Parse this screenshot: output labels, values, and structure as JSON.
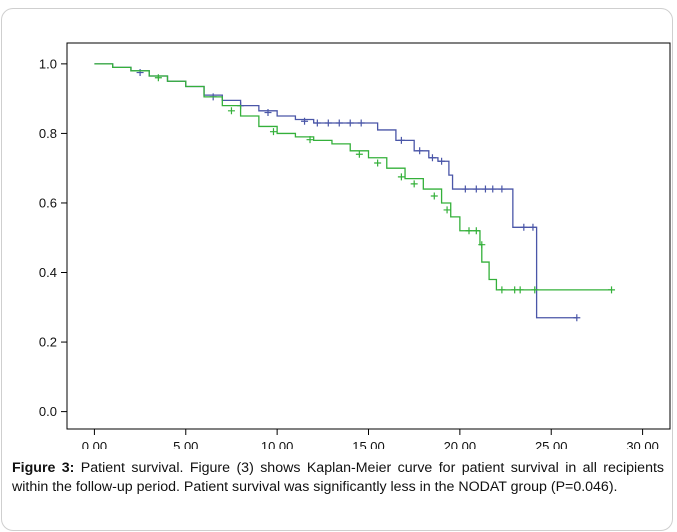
{
  "caption": {
    "label": "Figure 3:",
    "text": " Patient survival. Figure (3) shows Kaplan-Meier curve for patient survival in all recipients within the follow-up period. Patient survival was significantly less in the NODAT group (P=0.046)."
  },
  "chart_data": {
    "type": "line",
    "title": "",
    "xlabel": "",
    "ylabel": "",
    "xlim": [
      -1.5,
      31.5
    ],
    "ylim": [
      -0.05,
      1.06
    ],
    "x_ticks": [
      "0.00",
      "5.00",
      "10.00",
      "15.00",
      "20.00",
      "25.00",
      "30.00"
    ],
    "y_ticks": [
      "0.0",
      "0.2",
      "0.4",
      "0.6",
      "0.8",
      "1.0"
    ],
    "grid": false,
    "legend": "none",
    "series": [
      {
        "color": "#4a56a8",
        "step": [
          [
            0,
            1.0
          ],
          [
            1,
            0.99
          ],
          [
            2,
            0.98
          ],
          [
            3,
            0.965
          ],
          [
            4,
            0.95
          ],
          [
            5,
            0.935
          ],
          [
            6,
            0.91
          ],
          [
            7,
            0.895
          ],
          [
            8,
            0.88
          ],
          [
            9,
            0.865
          ],
          [
            10,
            0.85
          ],
          [
            11,
            0.84
          ],
          [
            12,
            0.83
          ],
          [
            15.5,
            0.81
          ],
          [
            16.5,
            0.78
          ],
          [
            17.5,
            0.75
          ],
          [
            18.3,
            0.73
          ],
          [
            18.8,
            0.72
          ],
          [
            19.4,
            0.68
          ],
          [
            19.6,
            0.64
          ],
          [
            22.9,
            0.53
          ],
          [
            24.2,
            0.27
          ],
          [
            26.4,
            0.27
          ]
        ],
        "censored": [
          [
            2.5,
            0.975
          ],
          [
            6.5,
            0.905
          ],
          [
            8.0,
            0.88
          ],
          [
            9.5,
            0.86
          ],
          [
            11.5,
            0.835
          ],
          [
            12.2,
            0.83
          ],
          [
            12.8,
            0.83
          ],
          [
            13.4,
            0.83
          ],
          [
            14.0,
            0.83
          ],
          [
            14.6,
            0.83
          ],
          [
            16.8,
            0.78
          ],
          [
            17.8,
            0.75
          ],
          [
            18.5,
            0.73
          ],
          [
            19.0,
            0.72
          ],
          [
            20.3,
            0.64
          ],
          [
            20.9,
            0.64
          ],
          [
            21.4,
            0.64
          ],
          [
            21.8,
            0.64
          ],
          [
            22.3,
            0.64
          ],
          [
            23.5,
            0.53
          ],
          [
            24.0,
            0.53
          ],
          [
            26.4,
            0.27
          ]
        ]
      },
      {
        "color": "#34b03a",
        "step": [
          [
            0,
            1.0
          ],
          [
            1,
            0.99
          ],
          [
            2,
            0.98
          ],
          [
            3,
            0.965
          ],
          [
            4,
            0.95
          ],
          [
            5,
            0.935
          ],
          [
            6,
            0.905
          ],
          [
            7,
            0.88
          ],
          [
            8,
            0.85
          ],
          [
            9,
            0.82
          ],
          [
            10,
            0.8
          ],
          [
            11,
            0.79
          ],
          [
            12,
            0.78
          ],
          [
            13,
            0.77
          ],
          [
            14,
            0.75
          ],
          [
            15,
            0.73
          ],
          [
            16,
            0.7
          ],
          [
            17,
            0.67
          ],
          [
            18,
            0.64
          ],
          [
            19,
            0.6
          ],
          [
            19.5,
            0.56
          ],
          [
            20.0,
            0.52
          ],
          [
            21.1,
            0.48
          ],
          [
            21.2,
            0.43
          ],
          [
            21.6,
            0.38
          ],
          [
            22.0,
            0.35
          ],
          [
            28.3,
            0.35
          ]
        ],
        "censored": [
          [
            3.5,
            0.96
          ],
          [
            7.5,
            0.865
          ],
          [
            9.8,
            0.805
          ],
          [
            11.8,
            0.782
          ],
          [
            14.5,
            0.74
          ],
          [
            15.5,
            0.715
          ],
          [
            16.8,
            0.675
          ],
          [
            17.5,
            0.655
          ],
          [
            18.6,
            0.62
          ],
          [
            19.3,
            0.58
          ],
          [
            20.5,
            0.52
          ],
          [
            20.9,
            0.52
          ],
          [
            21.2,
            0.48
          ],
          [
            22.3,
            0.35
          ],
          [
            23.0,
            0.35
          ],
          [
            23.3,
            0.35
          ],
          [
            24.1,
            0.35
          ],
          [
            28.3,
            0.35
          ]
        ]
      }
    ]
  }
}
